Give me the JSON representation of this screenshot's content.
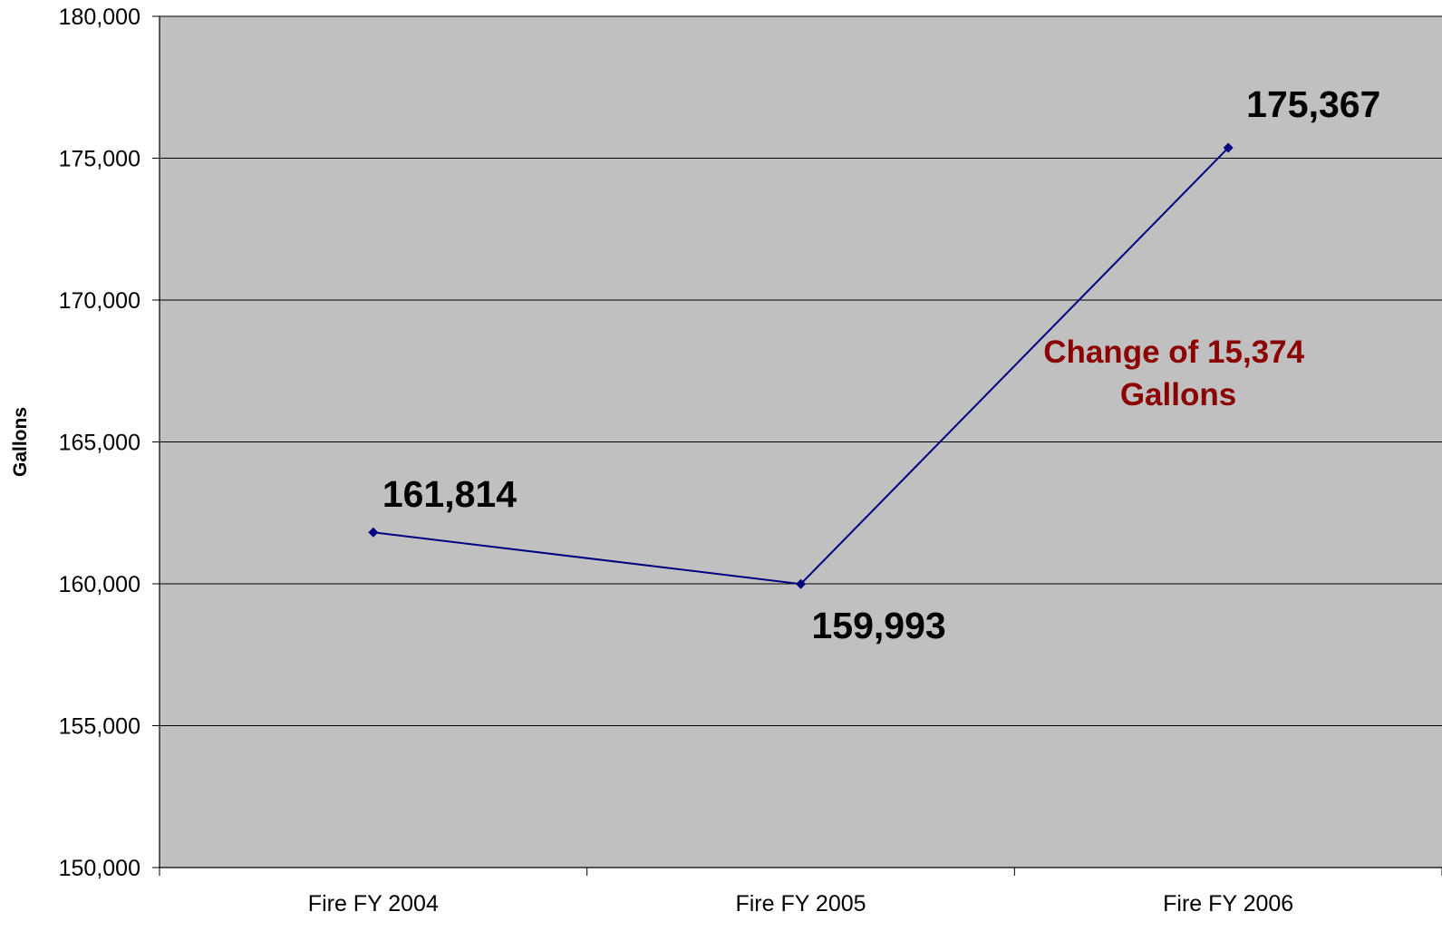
{
  "chart_data": {
    "type": "line",
    "title": "",
    "xlabel": "",
    "ylabel": "Gallons",
    "categories": [
      "Fire FY 2004",
      "Fire FY 2005",
      "Fire FY 2006"
    ],
    "series": [
      {
        "values": [
          161814,
          159993,
          175367
        ]
      }
    ],
    "data_labels": [
      "161,814",
      "159,993",
      "175,367"
    ],
    "ylim": [
      150000,
      180000
    ],
    "yticks": [
      150000,
      155000,
      160000,
      165000,
      170000,
      175000,
      180000
    ],
    "ytick_labels": [
      "150,000",
      "155,000",
      "160,000",
      "165,000",
      "170,000",
      "175,000",
      "180,000"
    ],
    "grid": true,
    "legend": "none",
    "annotation": {
      "lines": [
        "Change of 15,374",
        "Gallons"
      ],
      "color": "#8b0000"
    },
    "colors": {
      "plot_background": "#c0c0c0",
      "series_line": "#000080",
      "gridline": "#000000"
    }
  }
}
